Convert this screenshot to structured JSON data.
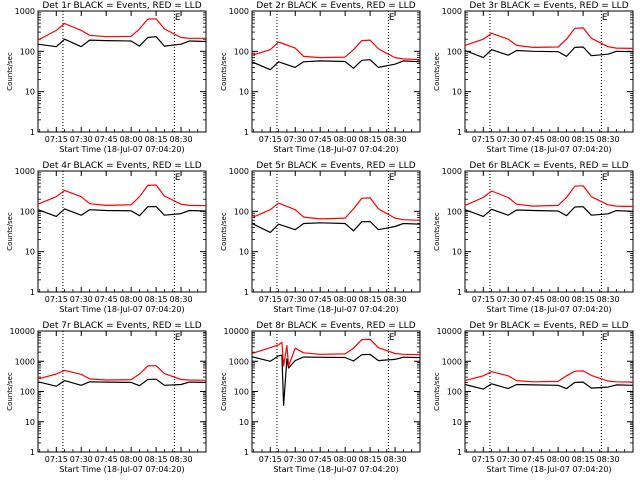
{
  "chart_data": [
    {
      "type": "line",
      "title": "Det 1r BLACK = Events, RED = LLD",
      "ylabel": "Counts/sec",
      "xlabel": "Start Time (18-Jul-07 07:04:20)",
      "ylim": [
        1,
        1000
      ],
      "yscale": "log",
      "x_ticks": [
        "07:15",
        "07:30",
        "07:45",
        "08:00",
        "08:15",
        "08:30"
      ],
      "y_ticks": [
        "1",
        "10",
        "100",
        "1000"
      ],
      "marker": "E",
      "series": [
        {
          "color": "#ff0000",
          "x": [
            "07:04",
            "07:15",
            "07:20",
            "07:30",
            "07:35",
            "07:45",
            "08:00",
            "08:05",
            "08:10",
            "08:15",
            "08:20",
            "08:30",
            "08:35",
            "08:45"
          ],
          "values": [
            190,
            330,
            490,
            330,
            250,
            230,
            235,
            360,
            630,
            640,
            360,
            220,
            210,
            210
          ]
        },
        {
          "color": "#000000",
          "x": [
            "07:04",
            "07:15",
            "07:20",
            "07:30",
            "07:35",
            "07:45",
            "08:00",
            "08:05",
            "08:10",
            "08:15",
            "08:20",
            "08:30",
            "08:35",
            "08:45"
          ],
          "values": [
            150,
            130,
            200,
            130,
            190,
            185,
            180,
            135,
            220,
            230,
            135,
            150,
            180,
            175
          ]
        }
      ]
    },
    {
      "type": "line",
      "title": "Det 2r BLACK = Events, RED = LLD",
      "ylabel": "Counts/sec",
      "xlabel": "Start Time (18-Jul-07 07:04:20)",
      "ylim": [
        1,
        1000
      ],
      "yscale": "log",
      "x_ticks": [
        "07:15",
        "07:30",
        "07:45",
        "08:00",
        "08:15",
        "08:30"
      ],
      "y_ticks": [
        "1",
        "10",
        "100",
        "1000"
      ],
      "marker": "E",
      "series": [
        {
          "color": "#ff0000",
          "x": [
            "07:04",
            "07:15",
            "07:20",
            "07:30",
            "07:35",
            "07:45",
            "08:00",
            "08:05",
            "08:10",
            "08:15",
            "08:20",
            "08:30",
            "08:35",
            "08:45"
          ],
          "values": [
            80,
            110,
            170,
            120,
            75,
            70,
            72,
            110,
            185,
            190,
            115,
            70,
            65,
            62
          ]
        },
        {
          "color": "#000000",
          "x": [
            "07:04",
            "07:15",
            "07:20",
            "07:30",
            "07:35",
            "07:45",
            "08:00",
            "08:05",
            "08:10",
            "08:15",
            "08:20",
            "08:30",
            "08:35",
            "08:45"
          ],
          "values": [
            55,
            35,
            55,
            40,
            55,
            58,
            56,
            38,
            60,
            62,
            40,
            48,
            58,
            55
          ]
        }
      ]
    },
    {
      "type": "line",
      "title": "Det 3r BLACK = Events, RED = LLD",
      "ylabel": "Counts/sec",
      "xlabel": "Start Time (18-Jul-07 07:04:20)",
      "ylim": [
        1,
        1000
      ],
      "yscale": "log",
      "x_ticks": [
        "07:15",
        "07:30",
        "07:45",
        "08:00",
        "08:15",
        "08:30"
      ],
      "y_ticks": [
        "1",
        "10",
        "100",
        "1000"
      ],
      "marker": "E",
      "series": [
        {
          "color": "#ff0000",
          "x": [
            "07:04",
            "07:15",
            "07:20",
            "07:30",
            "07:35",
            "07:45",
            "08:00",
            "08:05",
            "08:10",
            "08:15",
            "08:20",
            "08:30",
            "08:35",
            "08:45"
          ],
          "values": [
            140,
            200,
            280,
            200,
            140,
            125,
            128,
            200,
            370,
            380,
            210,
            130,
            120,
            118
          ]
        },
        {
          "color": "#000000",
          "x": [
            "07:04",
            "07:15",
            "07:20",
            "07:30",
            "07:35",
            "07:45",
            "08:00",
            "08:05",
            "08:10",
            "08:15",
            "08:20",
            "08:30",
            "08:35",
            "08:45"
          ],
          "values": [
            105,
            70,
            110,
            80,
            105,
            100,
            98,
            75,
            125,
            128,
            78,
            85,
            100,
            98
          ]
        }
      ]
    },
    {
      "type": "line",
      "title": "Det 4r BLACK = Events, RED = LLD",
      "ylabel": "Counts/sec",
      "xlabel": "Start Time (18-Jul-07 07:04:20)",
      "ylim": [
        1,
        1000
      ],
      "yscale": "log",
      "x_ticks": [
        "07:15",
        "07:30",
        "07:45",
        "08:00",
        "08:15",
        "08:30"
      ],
      "y_ticks": [
        "1",
        "10",
        "100",
        "1000"
      ],
      "marker": "E",
      "series": [
        {
          "color": "#ff0000",
          "x": [
            "07:04",
            "07:15",
            "07:20",
            "07:30",
            "07:35",
            "07:45",
            "08:00",
            "08:05",
            "08:10",
            "08:15",
            "08:20",
            "08:30",
            "08:35",
            "08:45"
          ],
          "values": [
            150,
            230,
            330,
            230,
            155,
            140,
            145,
            230,
            440,
            450,
            240,
            150,
            140,
            138
          ]
        },
        {
          "color": "#000000",
          "x": [
            "07:04",
            "07:15",
            "07:20",
            "07:30",
            "07:35",
            "07:45",
            "08:00",
            "08:05",
            "08:10",
            "08:15",
            "08:20",
            "08:30",
            "08:35",
            "08:45"
          ],
          "values": [
            110,
            75,
            115,
            80,
            110,
            105,
            103,
            78,
            130,
            132,
            80,
            88,
            105,
            102
          ]
        }
      ]
    },
    {
      "type": "line",
      "title": "Det 5r BLACK = Events, RED = LLD",
      "ylabel": "Counts/sec",
      "xlabel": "Start Time (18-Jul-07 07:04:20)",
      "ylim": [
        1,
        1000
      ],
      "yscale": "log",
      "x_ticks": [
        "07:15",
        "07:30",
        "07:45",
        "08:00",
        "08:15",
        "08:30"
      ],
      "y_ticks": [
        "1",
        "10",
        "100",
        "1000"
      ],
      "marker": "E",
      "series": [
        {
          "color": "#ff0000",
          "x": [
            "07:04",
            "07:15",
            "07:20",
            "07:30",
            "07:35",
            "07:45",
            "08:00",
            "08:05",
            "08:10",
            "08:15",
            "08:20",
            "08:30",
            "08:35",
            "08:45"
          ],
          "values": [
            70,
            110,
            160,
            110,
            72,
            65,
            68,
            115,
            210,
            215,
            115,
            68,
            62,
            60
          ]
        },
        {
          "color": "#000000",
          "x": [
            "07:04",
            "07:15",
            "07:20",
            "07:30",
            "07:35",
            "07:45",
            "08:00",
            "08:05",
            "08:10",
            "08:15",
            "08:20",
            "08:30",
            "08:35",
            "08:45"
          ],
          "values": [
            50,
            30,
            48,
            35,
            50,
            52,
            50,
            33,
            55,
            56,
            35,
            42,
            50,
            48
          ]
        }
      ]
    },
    {
      "type": "line",
      "title": "Det 6r BLACK = Events, RED = LLD",
      "ylabel": "Counts/sec",
      "xlabel": "Start Time (18-Jul-07 07:04:20)",
      "ylim": [
        1,
        1000
      ],
      "yscale": "log",
      "x_ticks": [
        "07:15",
        "07:30",
        "07:45",
        "08:00",
        "08:15",
        "08:30"
      ],
      "y_ticks": [
        "1",
        "10",
        "100",
        "1000"
      ],
      "marker": "E",
      "series": [
        {
          "color": "#ff0000",
          "x": [
            "07:04",
            "07:15",
            "07:20",
            "07:30",
            "07:35",
            "07:45",
            "08:00",
            "08:05",
            "08:10",
            "08:15",
            "08:20",
            "08:30",
            "08:35",
            "08:45"
          ],
          "values": [
            140,
            220,
            320,
            220,
            150,
            135,
            140,
            220,
            420,
            430,
            230,
            145,
            135,
            132
          ]
        },
        {
          "color": "#000000",
          "x": [
            "07:04",
            "07:15",
            "07:20",
            "07:30",
            "07:35",
            "07:45",
            "08:00",
            "08:05",
            "08:10",
            "08:15",
            "08:20",
            "08:30",
            "08:35",
            "08:45"
          ],
          "values": [
            110,
            75,
            112,
            80,
            108,
            105,
            102,
            78,
            128,
            130,
            80,
            87,
            104,
            100
          ]
        }
      ]
    },
    {
      "type": "line",
      "title": "Det 7r BLACK = Events, RED = LLD",
      "ylabel": "Counts/sec",
      "xlabel": "Start Time (18-Jul-07 07:04:20)",
      "ylim": [
        1,
        10000
      ],
      "yscale": "log",
      "x_ticks": [
        "07:15",
        "07:30",
        "07:45",
        "08:00",
        "08:15",
        "08:30"
      ],
      "y_ticks": [
        "1",
        "10",
        "100",
        "1000",
        "10000"
      ],
      "marker": "E",
      "series": [
        {
          "color": "#ff0000",
          "x": [
            "07:04",
            "07:15",
            "07:20",
            "07:30",
            "07:35",
            "07:45",
            "08:00",
            "08:05",
            "08:10",
            "08:15",
            "08:20",
            "08:30",
            "08:35",
            "08:45"
          ],
          "values": [
            260,
            380,
            500,
            370,
            260,
            240,
            245,
            380,
            700,
            710,
            390,
            250,
            240,
            235
          ]
        },
        {
          "color": "#000000",
          "x": [
            "07:04",
            "07:15",
            "07:20",
            "07:30",
            "07:35",
            "07:45",
            "08:00",
            "08:05",
            "08:10",
            "08:15",
            "08:20",
            "08:30",
            "08:35",
            "08:45"
          ],
          "values": [
            210,
            150,
            230,
            160,
            210,
            205,
            200,
            155,
            250,
            255,
            160,
            170,
            205,
            200
          ]
        }
      ]
    },
    {
      "type": "line",
      "title": "Det 8r BLACK = Events, RED = LLD",
      "ylabel": "Counts/sec",
      "xlabel": "Start Time (18-Jul-07 07:04:20)",
      "ylim": [
        1,
        10000
      ],
      "yscale": "log",
      "x_ticks": [
        "07:15",
        "07:30",
        "07:45",
        "08:00",
        "08:15",
        "08:30"
      ],
      "y_ticks": [
        "1",
        "10",
        "100",
        "1000",
        "10000"
      ],
      "marker": "E",
      "series": [
        {
          "color": "#ff0000",
          "x": [
            "07:04",
            "07:15",
            "07:20",
            "07:22",
            "07:23",
            "07:25",
            "07:26",
            "07:30",
            "07:35",
            "07:45",
            "08:00",
            "08:05",
            "08:10",
            "08:15",
            "08:20",
            "08:30",
            "08:35",
            "08:45"
          ],
          "values": [
            1800,
            2800,
            3500,
            4200,
            700,
            3300,
            700,
            2700,
            1900,
            1700,
            1750,
            2700,
            5200,
            5300,
            2800,
            1800,
            1700,
            1650
          ]
        },
        {
          "color": "#000000",
          "x": [
            "07:04",
            "07:15",
            "07:20",
            "07:22",
            "07:23",
            "07:25",
            "07:26",
            "07:30",
            "07:35",
            "07:45",
            "08:00",
            "08:05",
            "08:10",
            "08:15",
            "08:20",
            "08:30",
            "08:35",
            "08:45"
          ],
          "values": [
            1400,
            1000,
            1500,
            1600,
            35,
            1200,
            600,
            1050,
            1380,
            1350,
            1330,
            1020,
            1650,
            1680,
            1050,
            1150,
            1360,
            1320
          ]
        }
      ]
    },
    {
      "type": "line",
      "title": "Det 9r BLACK = Events, RED = LLD",
      "ylabel": "Counts/sec",
      "xlabel": "Start Time (18-Jul-07 07:04:20)",
      "ylim": [
        1,
        10000
      ],
      "yscale": "log",
      "x_ticks": [
        "07:15",
        "07:30",
        "07:45",
        "08:00",
        "08:15",
        "08:30"
      ],
      "y_ticks": [
        "1",
        "10",
        "100",
        "1000",
        "10000"
      ],
      "marker": "E",
      "series": [
        {
          "color": "#ff0000",
          "x": [
            "07:04",
            "07:15",
            "07:20",
            "07:30",
            "07:35",
            "07:45",
            "08:00",
            "08:05",
            "08:10",
            "08:15",
            "08:20",
            "08:30",
            "08:35",
            "08:45"
          ],
          "values": [
            230,
            330,
            450,
            330,
            230,
            210,
            215,
            330,
            470,
            480,
            340,
            220,
            210,
            205
          ]
        },
        {
          "color": "#000000",
          "x": [
            "07:04",
            "07:15",
            "07:20",
            "07:30",
            "07:35",
            "07:45",
            "08:00",
            "08:05",
            "08:10",
            "08:15",
            "08:20",
            "08:30",
            "08:35",
            "08:45"
          ],
          "values": [
            170,
            120,
            180,
            125,
            170,
            165,
            160,
            125,
            200,
            205,
            130,
            140,
            165,
            160
          ]
        }
      ]
    }
  ]
}
